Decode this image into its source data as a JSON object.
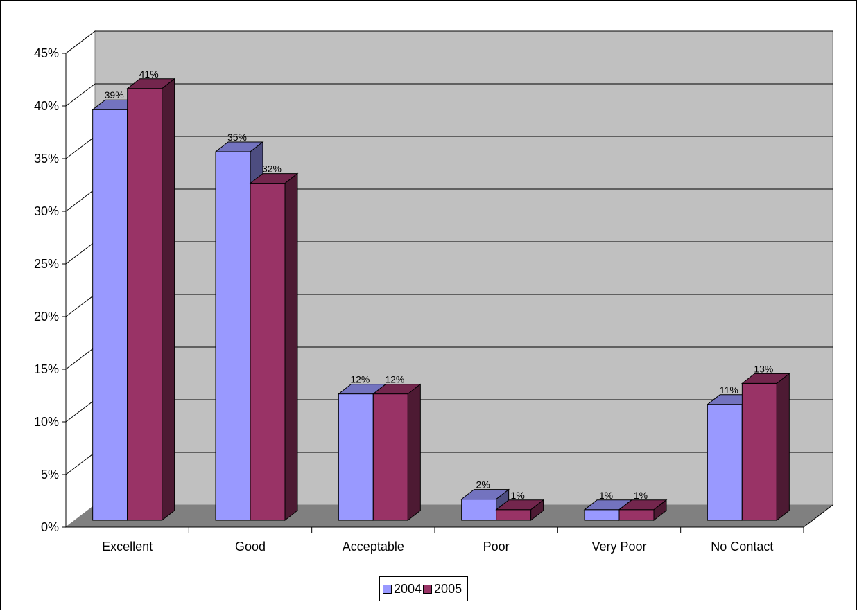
{
  "chart_data": {
    "type": "bar",
    "style": "3d-clustered-column",
    "categories": [
      "Excellent",
      "Good",
      "Acceptable",
      "Poor",
      "Very Poor",
      "No Contact"
    ],
    "series": [
      {
        "name": "2004",
        "values": [
          39,
          35,
          12,
          2,
          1,
          11
        ],
        "labels": [
          "39%",
          "35%",
          "12%",
          "2%",
          "1%",
          "11%"
        ]
      },
      {
        "name": "2005",
        "values": [
          41,
          32,
          12,
          1,
          1,
          13
        ],
        "labels": [
          "41%",
          "32%",
          "12%",
          "1%",
          "1%",
          "13%"
        ]
      }
    ],
    "y_ticks": [
      "0%",
      "5%",
      "10%",
      "15%",
      "20%",
      "25%",
      "30%",
      "35%",
      "40%",
      "45%"
    ],
    "ylim": [
      0,
      45
    ],
    "y_unit": "%",
    "title": "",
    "xlabel": "",
    "ylabel": "",
    "grid": true,
    "legend_position": "bottom",
    "colors": {
      "series_2004": "#9999ff",
      "series_2005": "#993366",
      "wall": "#c0c0c0",
      "floor": "#808080"
    }
  }
}
